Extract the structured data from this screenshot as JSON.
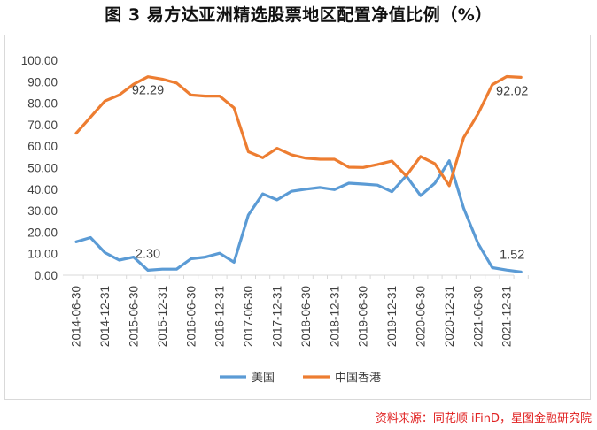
{
  "title": "图 3  易方达亚洲精选股票地区配置净值比例（%）",
  "source": "资料来源：同花顺 iFinD，星图金融研究院",
  "chart_data": {
    "type": "line",
    "title": "图 3  易方达亚洲精选股票地区配置净值比例（%）",
    "xlabel": "",
    "ylabel": "",
    "ylim": [
      0,
      100
    ],
    "y_ticks": [
      "0.00",
      "10.00",
      "20.00",
      "30.00",
      "40.00",
      "50.00",
      "60.00",
      "70.00",
      "80.00",
      "90.00",
      "100.00"
    ],
    "grid": false,
    "legend_position": "bottom",
    "x_tick_labels": [
      "2014-06-30",
      "2014-12-31",
      "2015-06-30",
      "2015-12-31",
      "2016-06-30",
      "2016-12-31",
      "2017-06-30",
      "2017-12-31",
      "2018-06-30",
      "2018-12-31",
      "2019-06-30",
      "2019-12-31",
      "2020-06-30",
      "2020-12-31",
      "2021-06-30",
      "2021-12-31"
    ],
    "x": [
      "2014-06-30",
      "2014-09-30",
      "2014-12-31",
      "2015-03-31",
      "2015-06-30",
      "2015-09-30",
      "2015-12-31",
      "2016-03-31",
      "2016-06-30",
      "2016-09-30",
      "2016-12-31",
      "2017-03-31",
      "2017-06-30",
      "2017-09-30",
      "2017-12-31",
      "2018-03-31",
      "2018-06-30",
      "2018-09-30",
      "2018-12-31",
      "2019-03-31",
      "2019-06-30",
      "2019-09-30",
      "2019-12-31",
      "2020-03-31",
      "2020-06-30",
      "2020-09-30",
      "2020-12-31",
      "2021-03-31",
      "2021-06-30",
      "2021-09-30",
      "2021-12-31",
      "2022-03-31"
    ],
    "series": [
      {
        "name": "美国",
        "color": "#5b9bd5",
        "values": [
          15.5,
          17.5,
          10.5,
          7.0,
          8.4,
          2.3,
          2.8,
          2.8,
          7.6,
          8.4,
          10.2,
          6.0,
          28.0,
          37.8,
          35.0,
          39.0,
          40.0,
          40.8,
          39.8,
          42.8,
          42.4,
          41.9,
          38.8,
          46.2,
          37.0,
          42.8,
          53.2,
          31.2,
          14.8,
          3.5,
          2.4,
          1.52
        ]
      },
      {
        "name": "中国香港",
        "color": "#ed7d31",
        "values": [
          66.0,
          73.5,
          81.0,
          83.8,
          88.8,
          92.29,
          91.2,
          89.4,
          83.8,
          83.3,
          83.3,
          77.8,
          57.4,
          54.6,
          59.0,
          56.0,
          54.4,
          53.9,
          53.9,
          50.2,
          50.1,
          51.5,
          53.1,
          46.2,
          55.2,
          51.8,
          41.6,
          63.9,
          75.0,
          88.6,
          92.4,
          92.02
        ]
      }
    ],
    "annotations": [
      {
        "text": "92.29",
        "series": "中国香港",
        "x": "2015-09-30"
      },
      {
        "text": "92.02",
        "series": "中国香港",
        "x": "2022-03-31"
      },
      {
        "text": "2.30",
        "series": "美国",
        "x": "2015-09-30"
      },
      {
        "text": "1.52",
        "series": "美国",
        "x": "2022-03-31"
      }
    ]
  }
}
